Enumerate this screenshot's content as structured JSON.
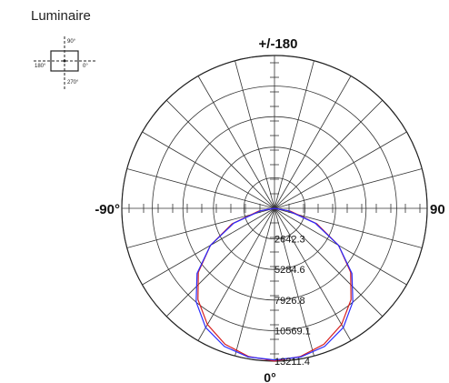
{
  "luminaire": {
    "title": "Luminaire",
    "labels": {
      "top": "90°",
      "left": "180°",
      "right": "0°",
      "bottom": "270°"
    }
  },
  "chart_data": {
    "type": "polar",
    "title": "",
    "angle_labels": {
      "top": "+/-180",
      "left": "-90°",
      "right": "90",
      "bottom": "0°"
    },
    "radial_ticks": [
      2642.3,
      5284.6,
      7926.8,
      10569.1,
      13211.4
    ],
    "r_max": 13211.4,
    "angle_step_deg": 15,
    "grid": true,
    "series": [
      {
        "color": "#d62020",
        "angles_deg": [
          0,
          10,
          20,
          30,
          40,
          50,
          60,
          70,
          80,
          90
        ],
        "values": [
          13200,
          13000,
          12500,
          11600,
          10300,
          8600,
          6400,
          3900,
          1400,
          0
        ]
      },
      {
        "color": "#2a2aff",
        "angles_deg": [
          0,
          10,
          20,
          30,
          40,
          50,
          60,
          70,
          80,
          90
        ],
        "values": [
          13100,
          13050,
          12700,
          11900,
          10550,
          8750,
          6400,
          3750,
          1200,
          0
        ]
      }
    ]
  }
}
